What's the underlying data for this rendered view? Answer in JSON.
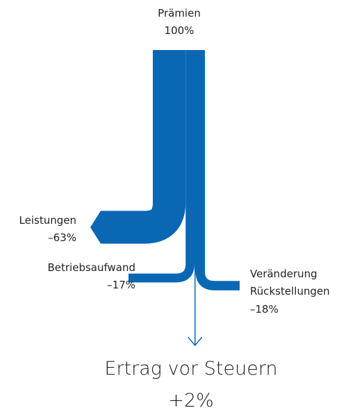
{
  "chart_data": {
    "type": "sankey",
    "color": "#0a67b4",
    "source": {
      "name": "Prämien",
      "value": 100,
      "value_label": "100%"
    },
    "flows": [
      {
        "name": "Leistungen",
        "value": -63,
        "value_label": "–63%",
        "direction": "left"
      },
      {
        "name": "Betriebsaufwand",
        "value": -17,
        "value_label": "–17%",
        "direction": "left"
      },
      {
        "name": "Ertrag vor Steuern",
        "value": 2,
        "value_label": "+2%",
        "direction": "down"
      },
      {
        "name": "Veränderung Rückstellungen",
        "value": -18,
        "value_label": "–18%",
        "direction": "right"
      }
    ]
  }
}
